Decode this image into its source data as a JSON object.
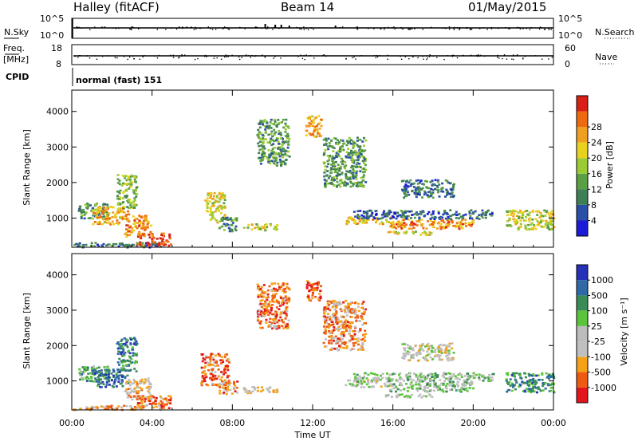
{
  "header": {
    "station": "Halley (fitACF)",
    "beam": "Beam 14",
    "date": "01/May/2015"
  },
  "strip_labels": {
    "nsky": "N.Sky",
    "nsearch": "N.Search",
    "freq_line1": "Freq.",
    "freq_line2": "[MHz]",
    "nave": "Nave",
    "cpid": "CPID",
    "cpid_value": "normal (fast) 151"
  },
  "strip_ticks": {
    "noise_left": [
      "10^5",
      "10^0"
    ],
    "noise_right": [
      "10^5",
      "10^0"
    ],
    "freq_left": [
      "18",
      "8"
    ],
    "nave_right": [
      "60",
      "0"
    ]
  },
  "colors": {
    "power": [
      "#1c1cd8",
      "#2a4fa8",
      "#3f7f56",
      "#5aa043",
      "#9acb35",
      "#e8d21e",
      "#f0a020",
      "#ee6a10",
      "#d82016"
    ],
    "velocity": [
      "#e3141b",
      "#ef5a12",
      "#f5a116",
      "#c0c0c0",
      "#bcbcbc",
      "#5cc43a",
      "#3a8c56",
      "#2f6aa6",
      "#2431b8"
    ]
  },
  "chart_data": [
    {
      "type": "heatmap",
      "name": "power",
      "ylabel": "Slant Range [km]",
      "x_range_hours": [
        0,
        24
      ],
      "y_range_km": [
        180,
        4600
      ],
      "y_ticks": [
        1000,
        2000,
        3000,
        4000
      ],
      "x_ticks": [
        "00:00",
        "04:00",
        "08:00",
        "12:00",
        "16:00",
        "20:00",
        "00:00"
      ],
      "colorbar": {
        "label": "Power [dB]",
        "range": [
          0,
          32
        ],
        "ticks": [
          "4",
          "8",
          "12",
          "16",
          "20",
          "24",
          "28"
        ]
      },
      "regions": [
        {
          "t0": 0.0,
          "t1": 4.5,
          "r0": 200,
          "r1": 330,
          "level": 0.25
        },
        {
          "t0": 0.3,
          "t1": 1.8,
          "r0": 1000,
          "r1": 1450,
          "level": 0.35
        },
        {
          "t0": 1.0,
          "t1": 2.8,
          "r0": 850,
          "r1": 1350,
          "level": 0.7
        },
        {
          "t0": 2.2,
          "t1": 3.2,
          "r0": 1300,
          "r1": 2250,
          "level": 0.45
        },
        {
          "t0": 2.6,
          "t1": 3.9,
          "r0": 500,
          "r1": 1100,
          "level": 0.75
        },
        {
          "t0": 3.2,
          "t1": 4.9,
          "r0": 250,
          "r1": 600,
          "level": 0.9
        },
        {
          "t0": 6.6,
          "t1": 7.6,
          "r0": 900,
          "r1": 1750,
          "level": 0.6
        },
        {
          "t0": 7.3,
          "t1": 8.2,
          "r0": 650,
          "r1": 1050,
          "level": 0.3
        },
        {
          "t0": 8.5,
          "t1": 10.2,
          "r0": 680,
          "r1": 860,
          "level": 0.55
        },
        {
          "t0": 9.2,
          "t1": 10.8,
          "r0": 2500,
          "r1": 3800,
          "level": 0.35
        },
        {
          "t0": 11.6,
          "t1": 12.4,
          "r0": 3300,
          "r1": 3900,
          "level": 0.7
        },
        {
          "t0": 12.5,
          "t1": 14.6,
          "r0": 1900,
          "r1": 3300,
          "level": 0.35
        },
        {
          "t0": 13.6,
          "t1": 15.9,
          "r0": 850,
          "r1": 1050,
          "level": 0.65
        },
        {
          "t0": 15.6,
          "t1": 18.0,
          "r0": 550,
          "r1": 650,
          "level": 0.55
        },
        {
          "t0": 15.8,
          "t1": 20.0,
          "r0": 720,
          "r1": 1000,
          "level": 0.75
        },
        {
          "t0": 16.4,
          "t1": 19.0,
          "r0": 1600,
          "r1": 2100,
          "level": 0.25
        },
        {
          "t0": 21.6,
          "t1": 24.0,
          "r0": 700,
          "r1": 1250,
          "level": 0.55
        },
        {
          "t0": 14.0,
          "t1": 21.0,
          "r0": 1000,
          "r1": 1250,
          "level": 0.2
        }
      ]
    },
    {
      "type": "heatmap",
      "name": "velocity",
      "ylabel": "Slant Range [km]",
      "xlabel": "Time UT",
      "x_range_hours": [
        0,
        24
      ],
      "y_range_km": [
        180,
        4600
      ],
      "y_ticks": [
        1000,
        2000,
        3000,
        4000
      ],
      "x_ticks": [
        "00:00",
        "04:00",
        "08:00",
        "12:00",
        "16:00",
        "20:00",
        "00:00"
      ],
      "colorbar": {
        "label": "Velocity [m s⁻¹]",
        "range": [
          -1250,
          1250
        ],
        "ticks": [
          "-1000",
          "-500",
          "-100",
          "-25",
          "25",
          "100",
          "500",
          "1000"
        ]
      },
      "regions": [
        {
          "t0": 0.0,
          "t1": 4.5,
          "r0": 200,
          "r1": 330,
          "level": 0.3
        },
        {
          "t0": 0.3,
          "t1": 1.8,
          "r0": 1000,
          "r1": 1450,
          "level": 0.65
        },
        {
          "t0": 1.0,
          "t1": 2.8,
          "r0": 850,
          "r1": 1350,
          "level": 0.8
        },
        {
          "t0": 2.2,
          "t1": 3.2,
          "r0": 1300,
          "r1": 2250,
          "level": 0.75
        },
        {
          "t0": 2.6,
          "t1": 3.9,
          "r0": 500,
          "r1": 1100,
          "level": 0.35
        },
        {
          "t0": 3.2,
          "t1": 4.9,
          "r0": 250,
          "r1": 600,
          "level": 0.2
        },
        {
          "t0": 6.4,
          "t1": 7.8,
          "r0": 900,
          "r1": 1800,
          "level": 0.2
        },
        {
          "t0": 7.3,
          "t1": 8.2,
          "r0": 650,
          "r1": 1050,
          "level": 0.25
        },
        {
          "t0": 8.5,
          "t1": 10.2,
          "r0": 680,
          "r1": 860,
          "level": 0.35
        },
        {
          "t0": 9.2,
          "t1": 10.8,
          "r0": 2500,
          "r1": 3800,
          "level": 0.2
        },
        {
          "t0": 11.6,
          "t1": 12.4,
          "r0": 3300,
          "r1": 3900,
          "level": 0.15
        },
        {
          "t0": 12.5,
          "t1": 14.6,
          "r0": 1900,
          "r1": 3300,
          "level": 0.25
        },
        {
          "t0": 13.6,
          "t1": 15.9,
          "r0": 850,
          "r1": 1050,
          "level": 0.45
        },
        {
          "t0": 15.6,
          "t1": 18.0,
          "r0": 550,
          "r1": 650,
          "level": 0.45
        },
        {
          "t0": 15.8,
          "t1": 20.0,
          "r0": 720,
          "r1": 1000,
          "level": 0.6
        },
        {
          "t0": 16.4,
          "t1": 19.0,
          "r0": 1600,
          "r1": 2100,
          "level": 0.45
        },
        {
          "t0": 21.6,
          "t1": 24.0,
          "r0": 700,
          "r1": 1250,
          "level": 0.75
        },
        {
          "t0": 14.0,
          "t1": 21.0,
          "r0": 1000,
          "r1": 1250,
          "level": 0.55
        }
      ]
    }
  ]
}
